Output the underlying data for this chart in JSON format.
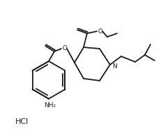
{
  "bg_color": "#ffffff",
  "line_color": "#1a1a1a",
  "line_width": 1.3,
  "figsize": [
    2.24,
    1.97
  ],
  "dpi": 100,
  "hcl_text": "HCl",
  "nh2_text": "NH₂",
  "n_text": "N",
  "o_text": "O"
}
